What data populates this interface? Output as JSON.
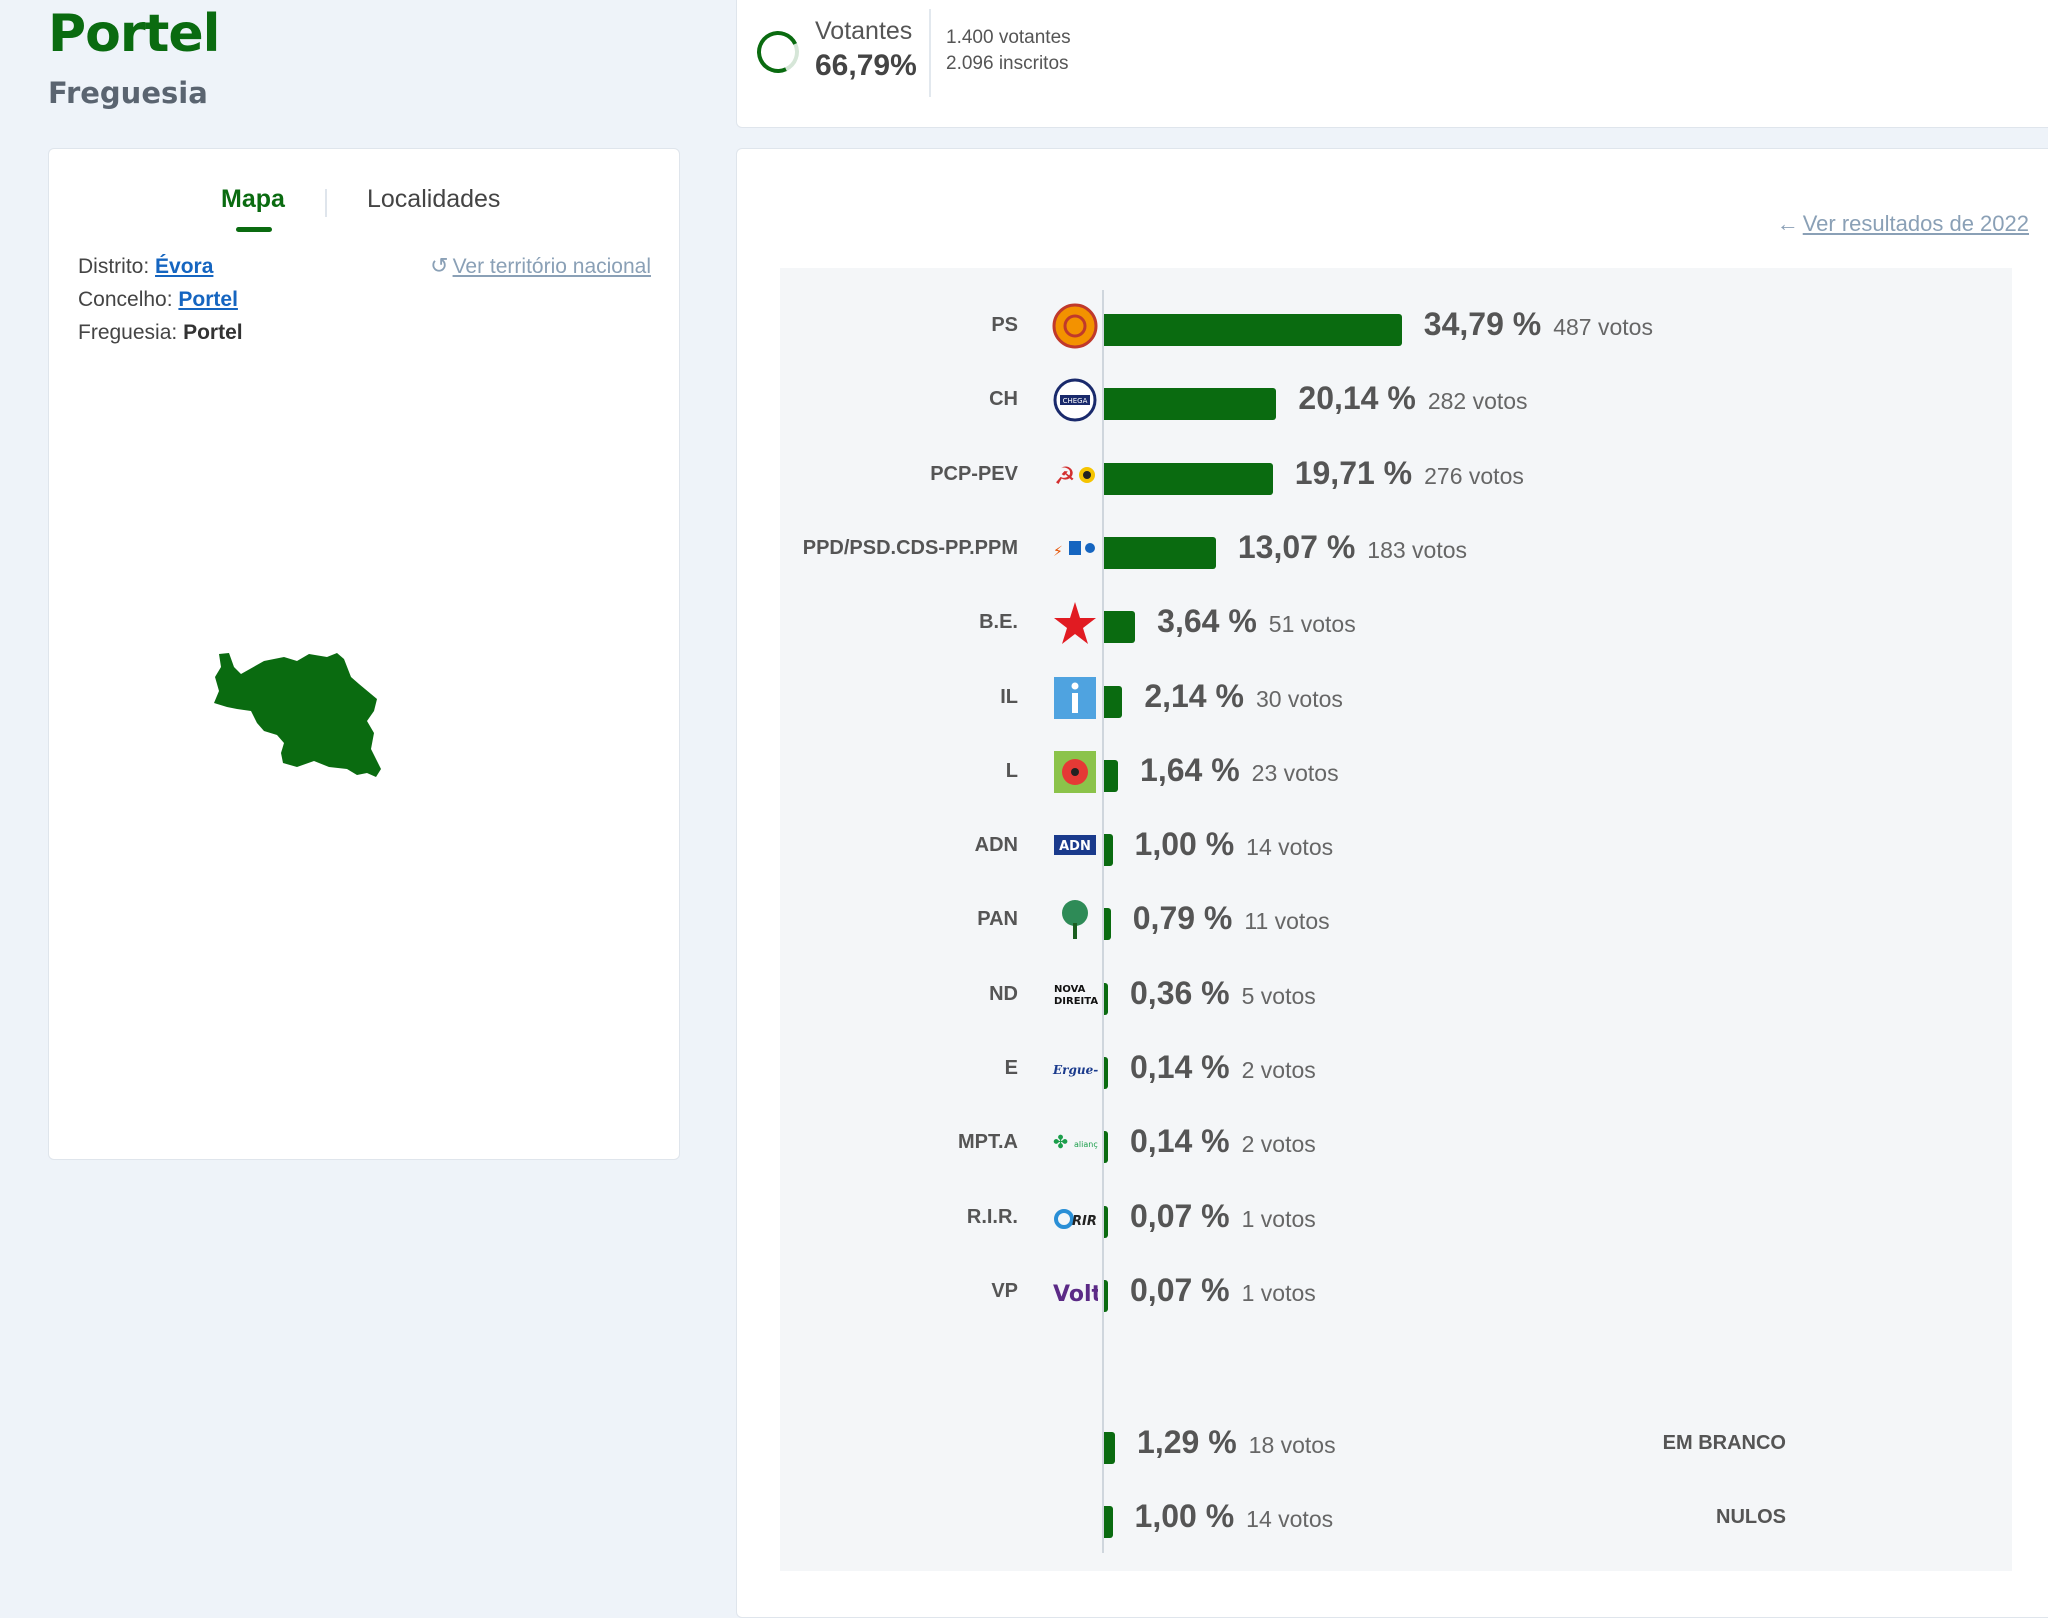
{
  "header": {
    "title": "Portel",
    "subtitle": "Freguesia"
  },
  "tabs": {
    "map": "Mapa",
    "localities": "Localidades"
  },
  "location": {
    "district_label": "Distrito:",
    "district": "Évora",
    "county_label": "Concelho:",
    "county": "Portel",
    "parish_label": "Freguesia:",
    "parish": "Portel",
    "national_link": "Ver território nacional"
  },
  "turnout": {
    "label": "Votantes",
    "percent": "66,79%",
    "percent_value": 66.79,
    "voters": "1.400 votantes",
    "registered": "2.096 inscritos"
  },
  "results": {
    "previous_link": "Ver resultados de 2022",
    "accent_color": "#0a6b10"
  },
  "chart_data": {
    "type": "bar",
    "orientation": "horizontal",
    "categories": [
      "PS",
      "CH",
      "PCP-PEV",
      "PPD/PSD.CDS-PP.PPM",
      "B.E.",
      "IL",
      "L",
      "ADN",
      "PAN",
      "ND",
      "E",
      "MPT.A",
      "R.I.R.",
      "VP",
      "EM BRANCO",
      "NULOS"
    ],
    "values": [
      34.79,
      20.14,
      19.71,
      13.07,
      3.64,
      2.14,
      1.64,
      1.0,
      0.79,
      0.36,
      0.14,
      0.14,
      0.07,
      0.07,
      1.29,
      1.0
    ],
    "labels": [
      "34,79 %",
      "20,14 %",
      "19,71 %",
      "13,07 %",
      "3,64 %",
      "2,14 %",
      "1,64 %",
      "1,00 %",
      "0,79 %",
      "0,36 %",
      "0,14 %",
      "0,14 %",
      "0,07 %",
      "0,07 %",
      "1,29 %",
      "1,00 %"
    ],
    "votes": [
      "487 votos",
      "282 votos",
      "276 votos",
      "183 votos",
      "51 votos",
      "30 votos",
      "23 votos",
      "14 votos",
      "11 votos",
      "5 votos",
      "2 votos",
      "2 votos",
      "1 votos",
      "1 votos",
      "18 votos",
      "14 votos"
    ],
    "logos": [
      "ps-logo",
      "chega-logo",
      "cdu-logo",
      "ad-logo",
      "be-star-logo",
      "il-logo",
      "livre-logo",
      "adn-logo",
      "pan-logo",
      "nd-logo",
      "ergue-te-logo",
      "mpt-alianca-logo",
      "rir-logo",
      "volt-logo",
      "",
      ""
    ],
    "bar_color": "#0a6b10"
  }
}
